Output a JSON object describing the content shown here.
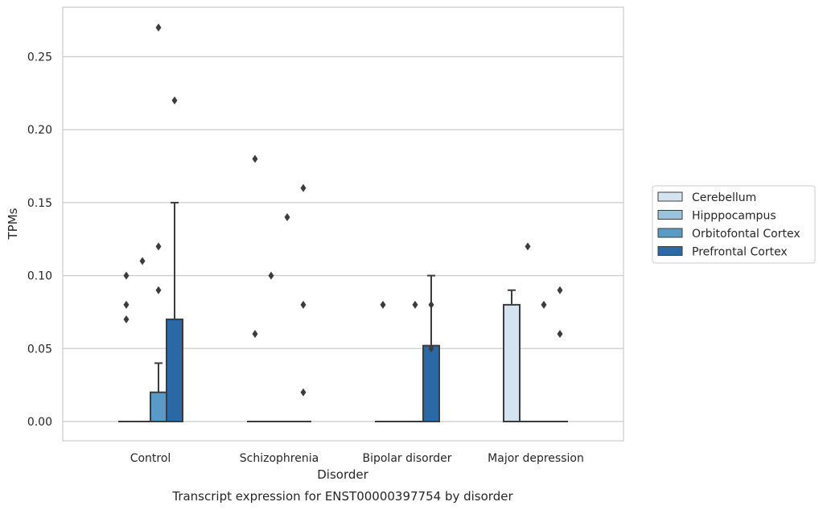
{
  "chart_data": {
    "type": "box",
    "title": "",
    "caption": "Transcript expression for ENST00000397754 by disorder",
    "xlabel": "Disorder",
    "ylabel": "TPMs",
    "ylim": [
      -0.013,
      0.285
    ],
    "yticks": [
      "0.00",
      "0.05",
      "0.10",
      "0.15",
      "0.20",
      "0.25"
    ],
    "ytick_values": [
      0,
      0.05,
      0.1,
      0.15,
      0.2,
      0.25
    ],
    "grid": "horizontal",
    "legend_position": "right",
    "categories": [
      "Control",
      "Schizophrenia",
      "Bipolar disorder",
      "Major depression"
    ],
    "series": [
      {
        "name": "Cerebellum",
        "color": "#d4e3f0",
        "boxes": [
          {
            "q1": 0,
            "median": 0,
            "q3": 0,
            "whisker_low": 0,
            "whisker_high": 0,
            "outliers": [
              0.07,
              0.08,
              0.1
            ]
          },
          {
            "q1": 0,
            "median": 0,
            "q3": 0,
            "whisker_low": 0,
            "whisker_high": 0,
            "outliers": [
              0.06,
              0.18
            ]
          },
          {
            "q1": 0,
            "median": 0,
            "q3": 0,
            "whisker_low": 0,
            "whisker_high": 0,
            "outliers": [
              0.08
            ]
          },
          {
            "q1": 0,
            "median": 0,
            "q3": 0.08,
            "whisker_low": 0,
            "whisker_high": 0.09,
            "outliers": []
          }
        ]
      },
      {
        "name": "Hipppocampus",
        "color": "#9ac3dc",
        "boxes": [
          {
            "q1": 0,
            "median": 0,
            "q3": 0,
            "whisker_low": 0,
            "whisker_high": 0,
            "outliers": [
              0.11
            ]
          },
          {
            "q1": 0,
            "median": 0,
            "q3": 0,
            "whisker_low": 0,
            "whisker_high": 0,
            "outliers": [
              0.1
            ]
          },
          {
            "q1": 0,
            "median": 0,
            "q3": 0,
            "whisker_low": 0,
            "whisker_high": 0,
            "outliers": []
          },
          {
            "q1": 0,
            "median": 0,
            "q3": 0,
            "whisker_low": 0,
            "whisker_high": 0,
            "outliers": [
              0.12
            ]
          }
        ]
      },
      {
        "name": "Orbitofontal Cortex",
        "color": "#5a9ac6",
        "boxes": [
          {
            "q1": 0,
            "median": 0,
            "q3": 0.02,
            "whisker_low": 0,
            "whisker_high": 0.04,
            "outliers": [
              0.09,
              0.12,
              0.27
            ]
          },
          {
            "q1": 0,
            "median": 0,
            "q3": 0,
            "whisker_low": 0,
            "whisker_high": 0,
            "outliers": [
              0.14
            ]
          },
          {
            "q1": 0,
            "median": 0,
            "q3": 0,
            "whisker_low": 0,
            "whisker_high": 0,
            "outliers": [
              0.08
            ]
          },
          {
            "q1": 0,
            "median": 0,
            "q3": 0,
            "whisker_low": 0,
            "whisker_high": 0,
            "outliers": [
              0.08
            ]
          }
        ]
      },
      {
        "name": "Prefrontal Cortex",
        "color": "#2a68a6",
        "boxes": [
          {
            "q1": 0,
            "median": 0,
            "q3": 0.07,
            "whisker_low": 0,
            "whisker_high": 0.15,
            "outliers": [
              0.22
            ]
          },
          {
            "q1": 0,
            "median": 0,
            "q3": 0,
            "whisker_low": 0,
            "whisker_high": 0,
            "outliers": [
              0.02,
              0.08,
              0.16
            ]
          },
          {
            "q1": 0,
            "median": 0,
            "q3": 0.052,
            "whisker_low": 0,
            "whisker_high": 0.1,
            "outliers": [
              0.05,
              0.08
            ]
          },
          {
            "q1": 0,
            "median": 0,
            "q3": 0,
            "whisker_low": 0,
            "whisker_high": 0,
            "outliers": [
              0.06,
              0.09
            ]
          }
        ]
      }
    ]
  }
}
